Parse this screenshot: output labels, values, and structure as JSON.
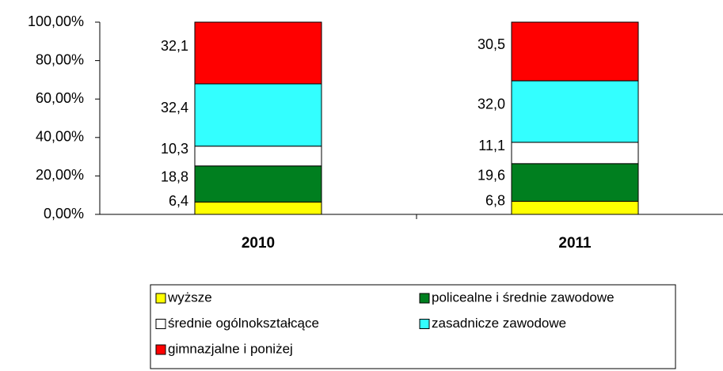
{
  "chart_data": {
    "type": "stacked_bar",
    "categories": [
      "2010",
      "2011"
    ],
    "series": [
      {
        "name": "wyższe",
        "color": "#ffff00",
        "values": [
          6.4,
          6.8
        ],
        "value_labels": [
          "6,4",
          "6,8"
        ]
      },
      {
        "name": "policealne i średnie zawodowe",
        "color": "#007f1f",
        "values": [
          18.8,
          19.6
        ],
        "value_labels": [
          "18,8",
          "19,6"
        ]
      },
      {
        "name": "średnie ogólnokształcące",
        "color": "#ffffff",
        "values": [
          10.3,
          11.1
        ],
        "value_labels": [
          "10,3",
          "11,1"
        ]
      },
      {
        "name": "zasadnicze zawodowe",
        "color": "#33ffff",
        "values": [
          32.4,
          32.0
        ],
        "value_labels": [
          "32,4",
          "32,0"
        ]
      },
      {
        "name": "gimnazjalne i poniżej",
        "color": "#ff0000",
        "values": [
          32.1,
          30.5
        ],
        "value_labels": [
          "32,1",
          "30,5"
        ]
      }
    ],
    "ylim": [
      0,
      100
    ],
    "yticks": [
      {
        "value": 0,
        "label": "0,00%"
      },
      {
        "value": 20,
        "label": "20,00%"
      },
      {
        "value": 40,
        "label": "40,00%"
      },
      {
        "value": 60,
        "label": "60,00%"
      },
      {
        "value": 80,
        "label": "80,00%"
      },
      {
        "value": 100,
        "label": "100,00%"
      }
    ],
    "legend": "bottom"
  }
}
